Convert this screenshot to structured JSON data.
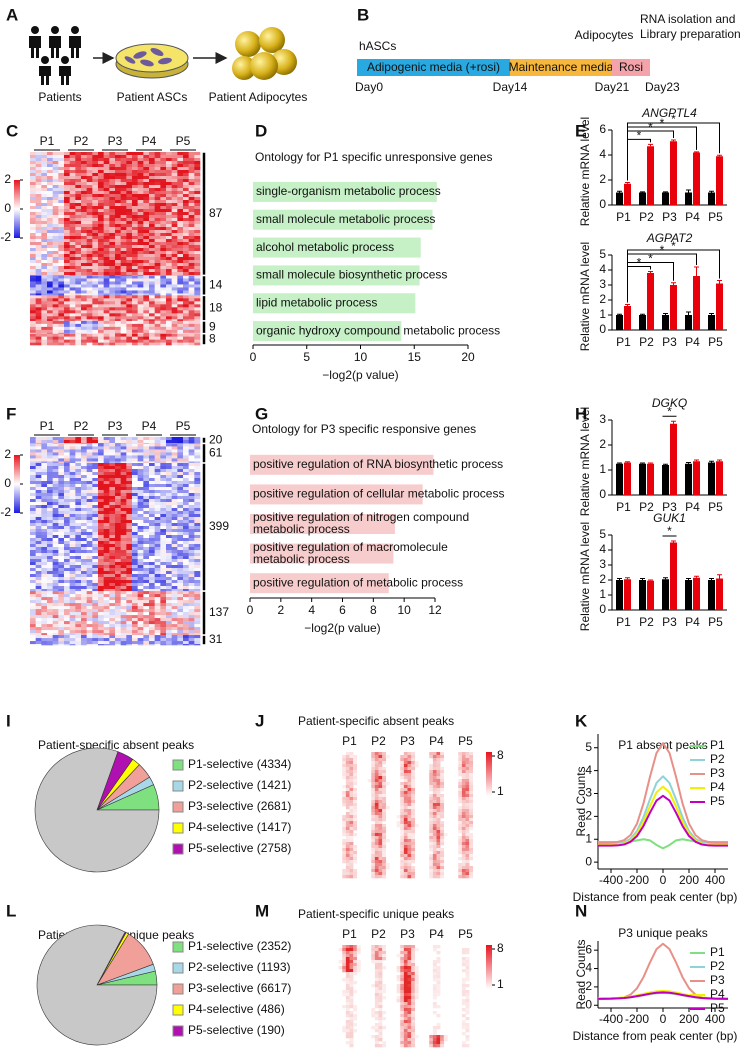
{
  "panels": {
    "A": {
      "label": "A",
      "items": [
        "Patients",
        "Patient ASCs",
        "Patient Adipocytes"
      ]
    },
    "B": {
      "label": "B",
      "stages": [
        "hASCs",
        "Adipocytes"
      ],
      "final": [
        "RNA isolation and",
        "Library preparation"
      ],
      "segments": [
        "Adipogenic media (+rosi)",
        "Maintenance media",
        "Rosi"
      ],
      "segment_colors": [
        "#29a9e1",
        "#f6b73c",
        "#f4a3ab"
      ],
      "days": [
        "Day0",
        "Day14",
        "Day21",
        "Day23"
      ]
    },
    "C": {
      "label": "C",
      "columns": [
        "P1",
        "P2",
        "P3",
        "P4",
        "P5"
      ],
      "colorbar": [
        2,
        0,
        -2
      ],
      "clusters": [
        87,
        14,
        18,
        9,
        8
      ]
    },
    "D": {
      "label": "D",
      "type": "hbar",
      "title": "Ontology for P1 specific unresponsive genes",
      "title_color": "#1a9a3a",
      "color": "#c6f0c6",
      "categories": [
        [
          "single-organism metabolic process"
        ],
        [
          "small molecule metabolic process"
        ],
        [
          "alcohol metabolic process"
        ],
        [
          "small molecule biosynthetic process"
        ],
        [
          "lipid metabolic process"
        ],
        [
          "organic hydroxy compound metabolic process"
        ]
      ],
      "values": [
        17.1,
        16.7,
        15.6,
        15.5,
        15.1,
        13.8
      ],
      "xlim": [
        0,
        20
      ],
      "xticks": [
        0,
        5,
        10,
        15,
        20
      ],
      "xlabel": "−log2(p value)"
    },
    "E": {
      "label": "E",
      "ylabel": "Relative mRNA level",
      "significance": "*",
      "charts": [
        {
          "type": "bar",
          "gene": "ANGPTL4",
          "categories": [
            "P1",
            "P2",
            "P3",
            "P4",
            "P5"
          ],
          "ylim": [
            0,
            6
          ],
          "yticks": [
            0,
            2,
            4,
            6
          ],
          "series": [
            {
              "color": "#000000",
              "values": [
                1.0,
                1.0,
                1.0,
                1.0,
                1.0
              ],
              "errors": [
                0.1,
                0.05,
                0.05,
                0.2,
                0.1
              ]
            },
            {
              "color": "#e8000b",
              "values": [
                1.7,
                4.7,
                5.1,
                4.2,
                3.9
              ],
              "errors": [
                0.1,
                0.15,
                0.1,
                0.05,
                0.08
              ]
            }
          ]
        },
        {
          "type": "bar",
          "gene": "AGPAT2",
          "categories": [
            "P1",
            "P2",
            "P3",
            "P4",
            "P5"
          ],
          "ylim": [
            0,
            5
          ],
          "yticks": [
            0,
            1,
            2,
            3,
            4,
            5
          ],
          "series": [
            {
              "color": "#000000",
              "values": [
                1.0,
                1.0,
                1.0,
                1.0,
                1.0
              ],
              "errors": [
                0.05,
                0.05,
                0.1,
                0.2,
                0.1
              ]
            },
            {
              "color": "#e8000b",
              "values": [
                1.6,
                3.8,
                3.0,
                3.6,
                3.1
              ],
              "errors": [
                0.1,
                0.1,
                0.15,
                0.6,
                0.2
              ]
            }
          ]
        }
      ]
    },
    "F": {
      "label": "F",
      "columns": [
        "P1",
        "P2",
        "P3",
        "P4",
        "P5"
      ],
      "colorbar": [
        2,
        0,
        -2
      ],
      "clusters": [
        20,
        61,
        399,
        137,
        31
      ]
    },
    "G": {
      "label": "G",
      "type": "hbar",
      "title": "Ontology for P3 specific responsive genes",
      "title_color": "#e8000b",
      "color": "#f7cccc",
      "categories": [
        [
          "positive regulation of RNA biosynthetic process"
        ],
        [
          "positive regulation of cellular metabolic process"
        ],
        [
          "positive regulation of nitrogen compound",
          "metabolic process"
        ],
        [
          "positive regulation of macromolecule",
          "metabolic process"
        ],
        [
          "positive regulation of metabolic process"
        ]
      ],
      "values": [
        11.9,
        11.2,
        9.4,
        9.3,
        9.0
      ],
      "xlim": [
        0,
        12
      ],
      "xticks": [
        0,
        2,
        4,
        6,
        8,
        10,
        12
      ],
      "xlabel": "−log2(p value)"
    },
    "H": {
      "label": "H",
      "ylabel": "Relative mRNA level",
      "significance": "*",
      "charts": [
        {
          "type": "bar",
          "gene": "DGKQ",
          "categories": [
            "P1",
            "P2",
            "P3",
            "P4",
            "P5"
          ],
          "ylim": [
            0,
            3
          ],
          "yticks": [
            0,
            1,
            2,
            3
          ],
          "series": [
            {
              "color": "#000000",
              "values": [
                1.25,
                1.25,
                1.2,
                1.25,
                1.3
              ],
              "errors": [
                0.03,
                0.03,
                0.03,
                0.05,
                0.05
              ]
            },
            {
              "color": "#e8000b",
              "values": [
                1.3,
                1.25,
                2.85,
                1.35,
                1.35
              ],
              "errors": [
                0.03,
                0.03,
                0.1,
                0.05,
                0.05
              ]
            }
          ]
        },
        {
          "type": "bar",
          "gene": "GUK1",
          "categories": [
            "P1",
            "P2",
            "P3",
            "P4",
            "P5"
          ],
          "ylim": [
            0,
            5
          ],
          "yticks": [
            0,
            1,
            2,
            3,
            4,
            5
          ],
          "series": [
            {
              "color": "#000000",
              "values": [
                2.0,
                2.0,
                2.05,
                2.0,
                2.0
              ],
              "errors": [
                0.1,
                0.1,
                0.1,
                0.1,
                0.1
              ]
            },
            {
              "color": "#e8000b",
              "values": [
                2.05,
                1.95,
                4.5,
                2.15,
                2.1
              ],
              "errors": [
                0.1,
                0.05,
                0.1,
                0.1,
                0.25
              ]
            }
          ]
        }
      ]
    },
    "I": {
      "label": "I",
      "type": "pie",
      "title": "Patient-specific absent peaks",
      "title_color": "#1a9a3a",
      "categories": [
        "P1-selective (4334)",
        "P2-selective (1421)",
        "P3-selective (2681)",
        "P4-selective (1417)",
        "P5-selective (2758)",
        null
      ],
      "values": [
        4334,
        1421,
        2681,
        1417,
        2758,
        52000
      ],
      "colors": [
        "#7ee07e",
        "#a8d8e8",
        "#f0a098",
        "#ffff00",
        "#b010b0",
        "#c8c8c8"
      ]
    },
    "J": {
      "label": "J",
      "title": "Patient-specific absent peaks",
      "title_color": "#1a9a3a",
      "columns": [
        "P1",
        "P2",
        "P3",
        "P4",
        "P5"
      ],
      "colorbar": [
        8,
        1
      ]
    },
    "K": {
      "label": "K",
      "type": "line",
      "title": "P1 absent peaks",
      "title_color": "#1a9a3a",
      "x": [
        -500,
        -450,
        -400,
        -350,
        -300,
        -250,
        -200,
        -150,
        -100,
        -50,
        0,
        50,
        100,
        150,
        200,
        250,
        300,
        350,
        400,
        450,
        500
      ],
      "series": [
        {
          "name": "P1",
          "color": "#7ee07e",
          "values": [
            0.88,
            0.88,
            0.88,
            0.88,
            0.88,
            0.9,
            0.95,
            1.0,
            0.95,
            0.75,
            0.6,
            0.75,
            0.95,
            1.0,
            0.95,
            0.9,
            0.88,
            0.88,
            0.88,
            0.88,
            0.88
          ]
        },
        {
          "name": "P2",
          "color": "#8fd3d6",
          "values": [
            0.8,
            0.8,
            0.8,
            0.82,
            0.87,
            1.02,
            1.36,
            1.97,
            2.75,
            3.46,
            3.75,
            3.46,
            2.75,
            1.97,
            1.36,
            1.02,
            0.87,
            0.82,
            0.8,
            0.8,
            0.8
          ]
        },
        {
          "name": "P3",
          "color": "#e89088",
          "values": [
            0.85,
            0.85,
            0.86,
            0.88,
            0.96,
            1.18,
            1.68,
            2.57,
            3.73,
            4.77,
            5.2,
            4.77,
            3.73,
            2.57,
            1.68,
            1.18,
            0.96,
            0.88,
            0.86,
            0.85,
            0.85
          ]
        },
        {
          "name": "P4",
          "color": "#f0f000",
          "values": [
            0.75,
            0.75,
            0.75,
            0.77,
            0.81,
            0.94,
            1.24,
            1.76,
            2.44,
            3.05,
            3.3,
            3.05,
            2.44,
            1.76,
            1.24,
            0.94,
            0.81,
            0.77,
            0.75,
            0.75,
            0.75
          ]
        },
        {
          "name": "P5",
          "color": "#c000c0",
          "values": [
            0.72,
            0.72,
            0.72,
            0.73,
            0.77,
            0.89,
            1.14,
            1.58,
            2.16,
            2.69,
            2.9,
            2.69,
            2.16,
            1.58,
            1.14,
            0.89,
            0.77,
            0.73,
            0.72,
            0.72,
            0.72
          ]
        }
      ],
      "xlim": [
        -500,
        500
      ],
      "xticks": [
        -400,
        -200,
        0,
        200,
        400
      ],
      "ylim": [
        -0.3,
        5.6
      ],
      "yticks": [
        0,
        1,
        2,
        3,
        4,
        5
      ],
      "xlabel": "Distance from peak center (bp)",
      "ylabel": "Read Counts"
    },
    "L": {
      "label": "L",
      "type": "pie",
      "title": "Patient-specific unique peaks",
      "title_color": "#e8000b",
      "categories": [
        "P1-selective (2352)",
        "P2-selective (1193)",
        "P3-selective (6617)",
        "P4-selective (486)",
        "P5-selective (190)",
        null
      ],
      "values": [
        2352,
        1193,
        6617,
        486,
        190,
        52000
      ],
      "colors": [
        "#7ee07e",
        "#a8d8e8",
        "#f0a098",
        "#ffff00",
        "#b010b0",
        "#c8c8c8"
      ]
    },
    "M": {
      "label": "M",
      "title": "Patient-specific unique peaks",
      "title_color": "#e8000b",
      "columns": [
        "P1",
        "P2",
        "P3",
        "P4",
        "P5"
      ],
      "colorbar": [
        8,
        1
      ]
    },
    "N": {
      "label": "N",
      "type": "line",
      "title": "P3 unique peaks",
      "title_color": "#e8000b",
      "x": [
        -500,
        -450,
        -400,
        -350,
        -300,
        -250,
        -200,
        -150,
        -100,
        -50,
        0,
        50,
        100,
        150,
        200,
        250,
        300,
        350,
        400,
        450,
        500
      ],
      "series": [
        {
          "name": "P1",
          "color": "#7ee07e",
          "values": [
            0.7,
            0.71,
            0.72,
            0.74,
            0.79,
            0.86,
            0.97,
            1.09,
            1.22,
            1.31,
            1.35,
            1.31,
            1.22,
            1.09,
            0.97,
            0.86,
            0.79,
            0.74,
            0.72,
            0.71,
            0.7
          ]
        },
        {
          "name": "P2",
          "color": "#8fd3d6",
          "values": [
            0.72,
            0.73,
            0.74,
            0.76,
            0.81,
            0.89,
            1.0,
            1.13,
            1.26,
            1.36,
            1.4,
            1.36,
            1.26,
            1.13,
            1.0,
            0.89,
            0.81,
            0.76,
            0.74,
            0.73,
            0.72
          ]
        },
        {
          "name": "P3",
          "color": "#e89088",
          "values": [
            0.7,
            0.7,
            0.71,
            0.74,
            0.85,
            1.15,
            1.85,
            3.07,
            4.67,
            6.11,
            6.7,
            6.11,
            4.67,
            3.07,
            1.85,
            1.15,
            0.85,
            0.74,
            0.71,
            0.7,
            0.7
          ]
        },
        {
          "name": "P4",
          "color": "#f0f000",
          "values": [
            0.75,
            0.76,
            0.77,
            0.8,
            0.86,
            0.95,
            1.08,
            1.24,
            1.39,
            1.51,
            1.55,
            1.51,
            1.39,
            1.24,
            1.08,
            0.95,
            0.86,
            0.8,
            0.77,
            0.76,
            0.75
          ]
        },
        {
          "name": "P5",
          "color": "#c000c0",
          "values": [
            0.7,
            0.71,
            0.72,
            0.75,
            0.79,
            0.87,
            0.99,
            1.12,
            1.26,
            1.36,
            1.4,
            1.36,
            1.26,
            1.12,
            0.99,
            0.87,
            0.79,
            0.75,
            0.72,
            0.71,
            0.7
          ]
        }
      ],
      "xlim": [
        -500,
        500
      ],
      "xticks": [
        -400,
        -200,
        0,
        200,
        400
      ],
      "ylim": [
        -0.3,
        7
      ],
      "yticks": [
        0,
        2,
        4,
        6
      ],
      "xlabel": "Distance from peak center (bp)",
      "ylabel": "Read Counts"
    }
  }
}
